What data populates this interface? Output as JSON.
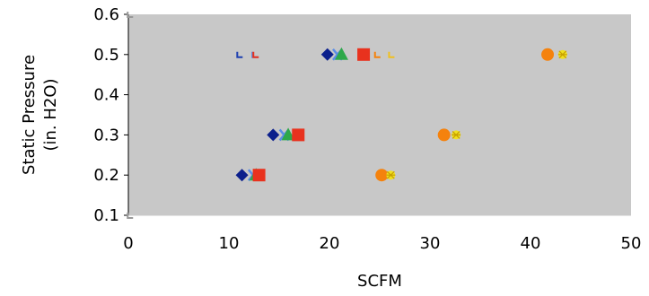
{
  "chart_data": {
    "type": "scatter",
    "title": "",
    "xlabel": "SCFM",
    "ylabel": [
      "Static Pressure",
      "(in. H2O)"
    ],
    "xlim": [
      0,
      50
    ],
    "ylim": [
      0.1,
      0.6
    ],
    "xticks": [
      "0",
      "10",
      "20",
      "30",
      "40",
      "50"
    ],
    "yticks": [
      "0.1",
      "0.2",
      "0.3",
      "0.4",
      "0.5",
      "0.6"
    ],
    "grid": false,
    "legend": "none",
    "plot_background": "#c8c8c8",
    "series": [
      {
        "color": "#0b1f8c",
        "marker": "diamond",
        "points": [
          [
            11.3,
            0.2
          ],
          [
            14.4,
            0.3
          ],
          [
            19.8,
            0.5
          ]
        ]
      },
      {
        "color": "#5b8de6",
        "marker": "x",
        "points": [
          [
            12.4,
            0.2
          ],
          [
            15.5,
            0.3
          ],
          [
            20.8,
            0.5
          ]
        ]
      },
      {
        "color": "#2ea84a",
        "marker": "triangle",
        "points": [
          [
            12.7,
            0.2
          ],
          [
            15.9,
            0.3
          ],
          [
            21.2,
            0.5
          ]
        ]
      },
      {
        "color": "#e8321e",
        "marker": "square",
        "points": [
          [
            13.0,
            0.2
          ],
          [
            16.9,
            0.3
          ],
          [
            23.4,
            0.5
          ]
        ]
      },
      {
        "color": "#f5820d",
        "marker": "circle",
        "points": [
          [
            25.2,
            0.2
          ],
          [
            31.4,
            0.3
          ],
          [
            41.7,
            0.5
          ]
        ]
      },
      {
        "color": "#f0e020",
        "marker": "star",
        "points": [
          [
            26.1,
            0.2
          ],
          [
            32.6,
            0.3
          ],
          [
            43.2,
            0.5
          ]
        ]
      },
      {
        "color": "#1d3fb0",
        "marker": "tick",
        "points": [
          [
            11.1,
            0.5
          ]
        ]
      },
      {
        "color": "#5b8de6",
        "marker": "tick",
        "points": [
          [
            12.6,
            0.5
          ]
        ]
      },
      {
        "color": "#e8321e",
        "marker": "tick",
        "points": [
          [
            12.7,
            0.5
          ]
        ]
      },
      {
        "color": "#f5820d",
        "marker": "tick",
        "points": [
          [
            24.8,
            0.5
          ]
        ]
      },
      {
        "color": "#f0c020",
        "marker": "tick",
        "points": [
          [
            26.2,
            0.5
          ]
        ]
      },
      {
        "color": "#999999",
        "marker": "tick",
        "points": [
          [
            0.2,
            0.6
          ],
          [
            0.2,
            0.1
          ]
        ]
      }
    ]
  }
}
